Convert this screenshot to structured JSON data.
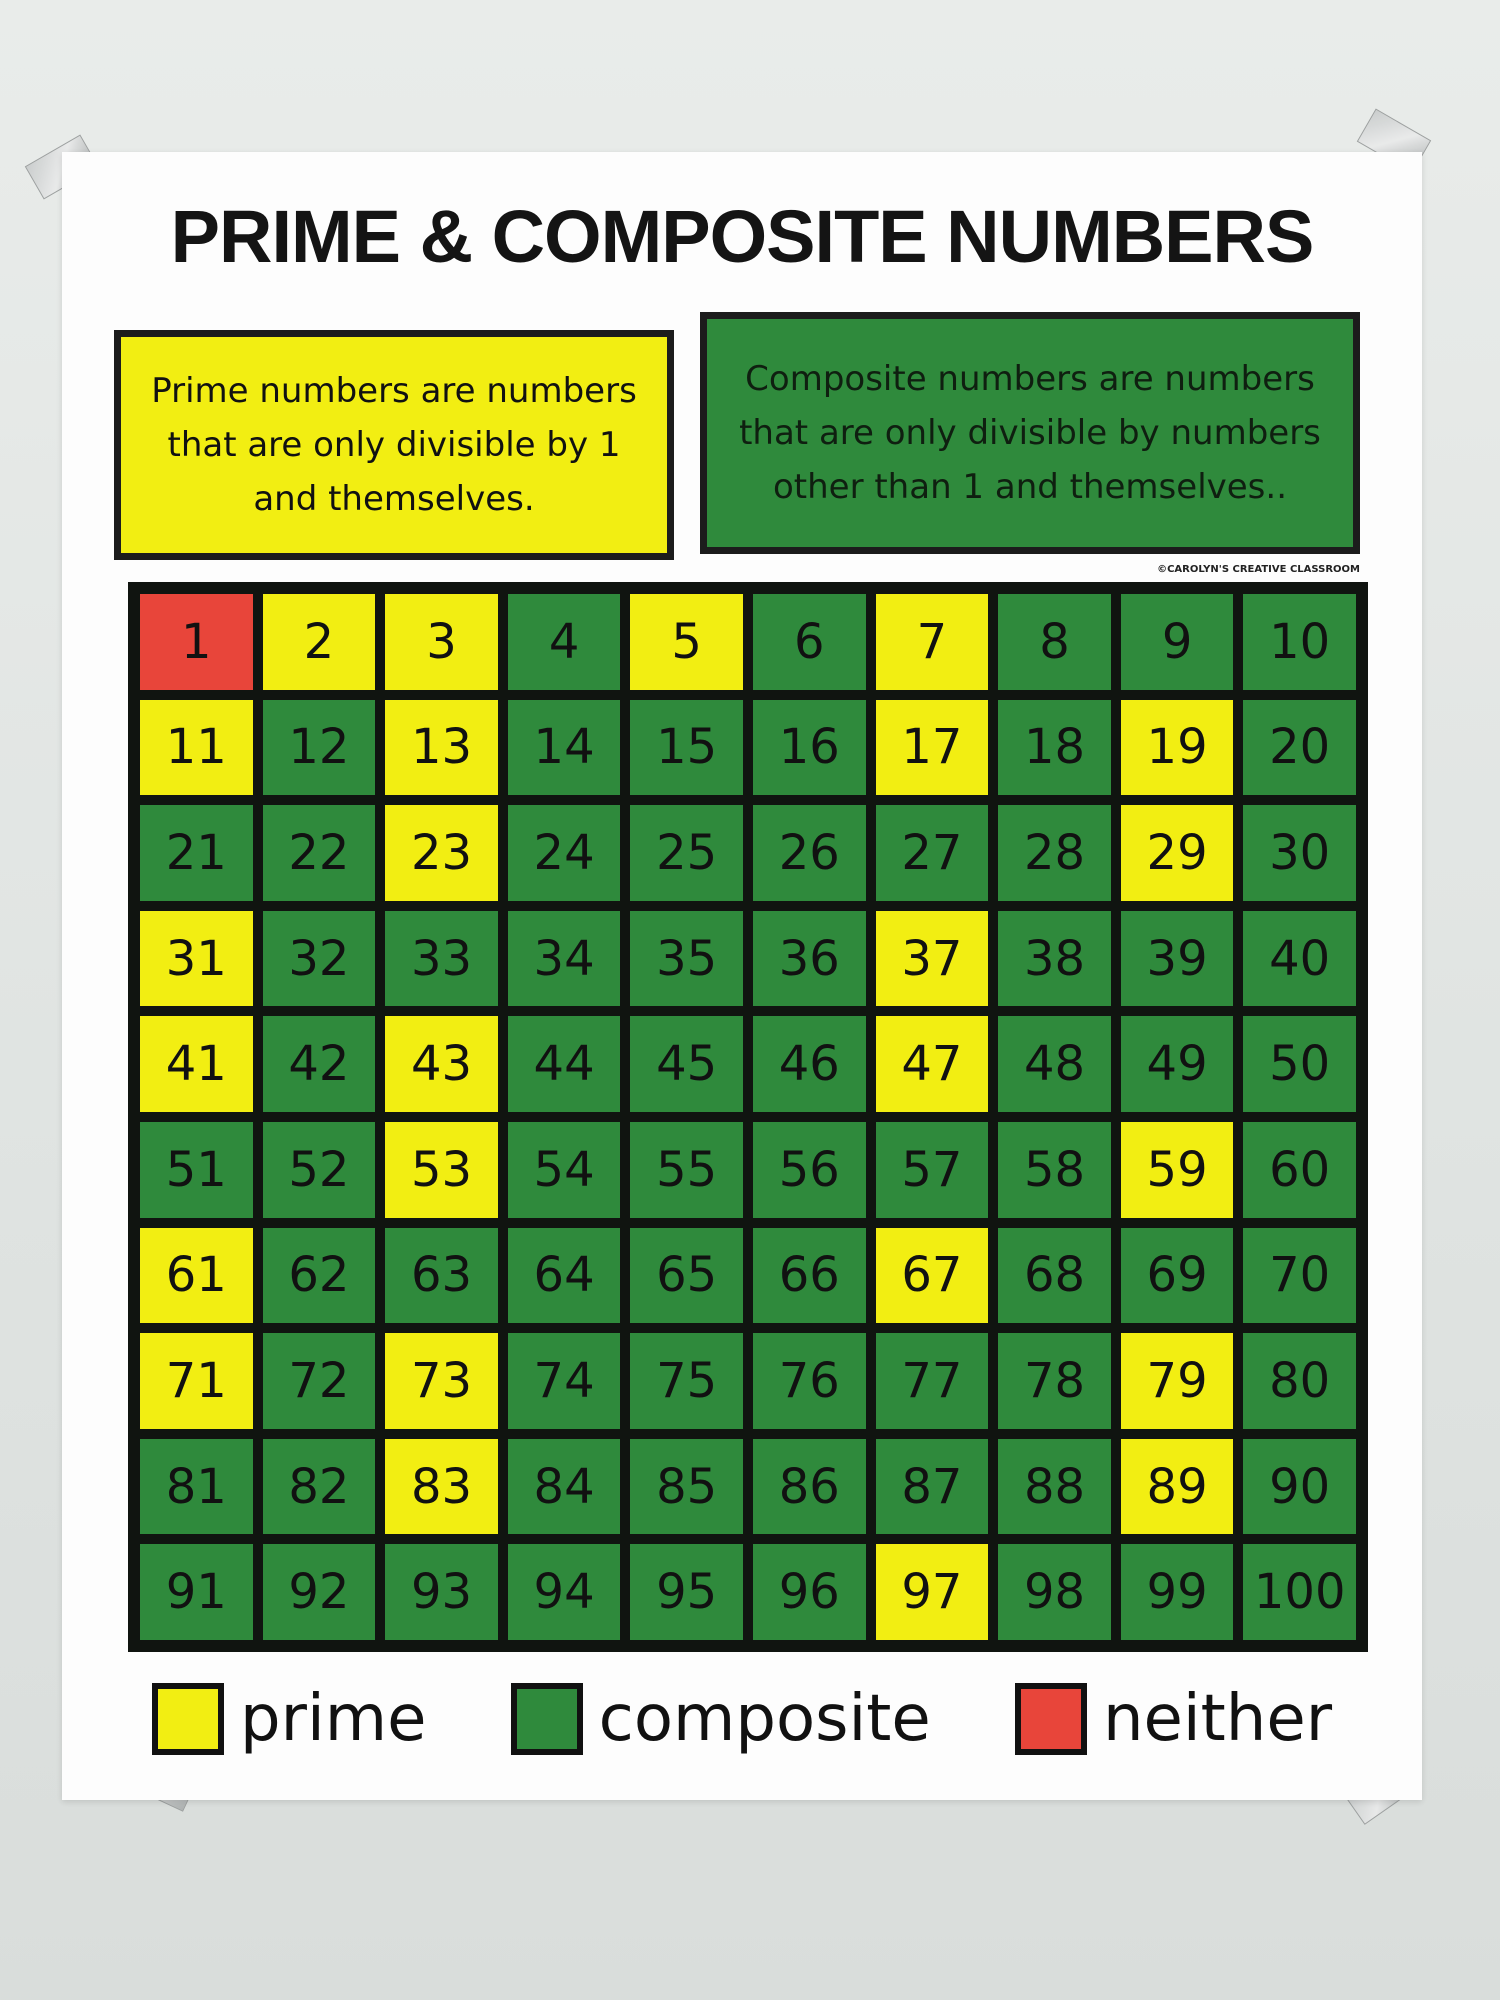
{
  "title": "PRIME & COMPOSITE NUMBERS",
  "definitions": {
    "prime": "Prime numbers are numbers that are only divisible by 1 and themselves.",
    "composite": "Composite numbers are numbers that are only divisible by numbers other than 1 and themselves.."
  },
  "copyright": "©CAROLYN'S CREATIVE CLASSROOM",
  "colors": {
    "prime": "#f2ee12",
    "composite": "#2f8a3c",
    "neither": "#e8453a",
    "grid_border": "#101410"
  },
  "grid": {
    "numbers": [
      "1",
      "2",
      "3",
      "4",
      "5",
      "6",
      "7",
      "8",
      "9",
      "10",
      "11",
      "12",
      "13",
      "14",
      "15",
      "16",
      "17",
      "18",
      "19",
      "20",
      "21",
      "22",
      "23",
      "24",
      "25",
      "26",
      "27",
      "28",
      "29",
      "30",
      "31",
      "32",
      "33",
      "34",
      "35",
      "36",
      "37",
      "38",
      "39",
      "40",
      "41",
      "42",
      "43",
      "44",
      "45",
      "46",
      "47",
      "48",
      "49",
      "50",
      "51",
      "52",
      "53",
      "54",
      "55",
      "56",
      "57",
      "58",
      "59",
      "60",
      "61",
      "62",
      "63",
      "64",
      "65",
      "66",
      "67",
      "68",
      "69",
      "70",
      "71",
      "72",
      "73",
      "74",
      "75",
      "76",
      "77",
      "78",
      "79",
      "80",
      "81",
      "82",
      "83",
      "84",
      "85",
      "86",
      "87",
      "88",
      "89",
      "90",
      "91",
      "92",
      "93",
      "94",
      "95",
      "96",
      "97",
      "98",
      "99",
      "100"
    ],
    "prime": [
      2,
      3,
      5,
      7,
      11,
      13,
      17,
      19,
      23,
      29,
      31,
      37,
      41,
      43,
      47,
      53,
      59,
      61,
      67,
      71,
      73,
      79,
      83,
      89,
      97
    ],
    "neither": [
      1
    ]
  },
  "legend": [
    {
      "label": "prime",
      "type": "prime"
    },
    {
      "label": "composite",
      "type": "composite"
    },
    {
      "label": "neither",
      "type": "neither"
    }
  ]
}
